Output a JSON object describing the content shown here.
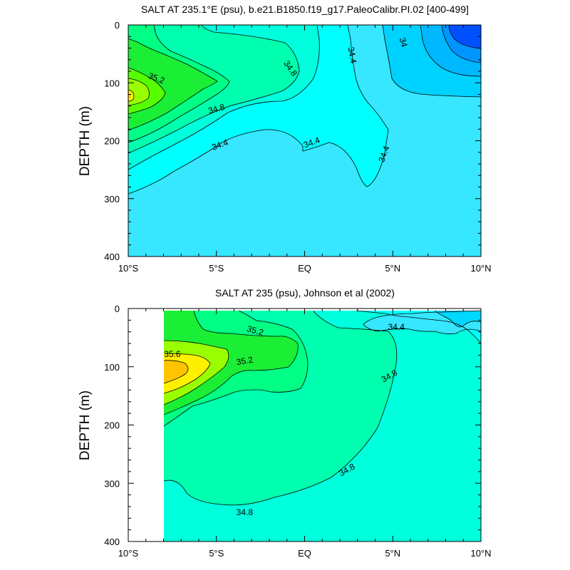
{
  "chart_data": [
    {
      "type": "contour",
      "title": "SALT AT 235.1°E (psu), b.e21.B1850.f19_g17.PaleoCalibr.PI.02 [400-499]",
      "ylabel": "DEPTH (m)",
      "xlim": [
        -10,
        10
      ],
      "ylim": [
        400,
        0
      ],
      "xticks": [
        {
          "value": -10,
          "label": "10°S"
        },
        {
          "value": -5,
          "label": "5°S"
        },
        {
          "value": 0,
          "label": "EQ"
        },
        {
          "value": 5,
          "label": "5°N"
        },
        {
          "value": 10,
          "label": "10°N"
        }
      ],
      "yticks": [
        {
          "value": 0,
          "label": "0"
        },
        {
          "value": 100,
          "label": "100"
        },
        {
          "value": 200,
          "label": "200"
        },
        {
          "value": 300,
          "label": "300"
        },
        {
          "value": 400,
          "label": "400"
        }
      ],
      "colors": {
        "c33_4": "#0050ff",
        "c33_6": "#0094ff",
        "c33_8": "#00b8ff",
        "c34_0": "#00d2ff",
        "c34_2": "#36e7ff",
        "c34_4": "#00ffff",
        "c34_6": "#00ffdd",
        "c34_8": "#00ffae",
        "c35_0": "#00ff84",
        "c35_2": "#1aef36",
        "c35_4": "#56ff00",
        "c35_6": "#99ff00",
        "c35_8": "#fff000",
        "c36_0": "#ffc400"
      },
      "contour_labels": [
        {
          "text": "35.2",
          "x": -8.4,
          "y": 92,
          "angle": 20
        },
        {
          "text": "34.8",
          "x": -5.0,
          "y": 145,
          "angle": -15
        },
        {
          "text": "34.4",
          "x": -4.8,
          "y": 207,
          "angle": -20
        },
        {
          "text": "34.8",
          "x": -0.8,
          "y": 75,
          "angle": 55
        },
        {
          "text": "34.4",
          "x": 2.7,
          "y": 52,
          "angle": 80
        },
        {
          "text": "34",
          "x": 5.6,
          "y": 30,
          "angle": 75
        },
        {
          "text": "34.4",
          "x": 0.4,
          "y": 203,
          "angle": -20
        },
        {
          "text": "34.4",
          "x": 4.5,
          "y": 223,
          "angle": -70
        }
      ]
    },
    {
      "type": "contour",
      "title": "SALT AT 235 (psu), Johnson et al (2002)",
      "ylabel": "DEPTH (m)",
      "xlim": [
        -10,
        10
      ],
      "ylim": [
        400,
        0
      ],
      "xticks": [
        {
          "value": -10,
          "label": "10°S"
        },
        {
          "value": -5,
          "label": "5°S"
        },
        {
          "value": 0,
          "label": "EQ"
        },
        {
          "value": 5,
          "label": "5°N"
        },
        {
          "value": 10,
          "label": "10°N"
        }
      ],
      "yticks": [
        {
          "value": 0,
          "label": "0"
        },
        {
          "value": 100,
          "label": "100"
        },
        {
          "value": 200,
          "label": "200"
        },
        {
          "value": 300,
          "label": "300"
        },
        {
          "value": 400,
          "label": "400"
        }
      ],
      "data_start_lon": -8,
      "colors": {
        "c34_2": "#00d8ff",
        "c34_4": "#36e7ff",
        "c34_6": "#00ffff",
        "c34_8": "#00ffdd",
        "c35_0": "#00ffae",
        "c35_2": "#00ff84",
        "c35_4": "#1aef36",
        "c35_6": "#99ff00",
        "c35_8": "#fff000",
        "c36_0": "#ffc400"
      },
      "contour_labels": [
        {
          "text": "35.2",
          "x": -2.8,
          "y": 38,
          "angle": 15
        },
        {
          "text": "34.4",
          "x": 5.2,
          "y": 32,
          "angle": 0
        },
        {
          "text": "35.6",
          "x": -7.5,
          "y": 78,
          "angle": 0
        },
        {
          "text": "35.2",
          "x": -3.4,
          "y": 90,
          "angle": -10
        },
        {
          "text": "34.8",
          "x": 4.8,
          "y": 116,
          "angle": -30
        },
        {
          "text": "34.8",
          "x": 2.4,
          "y": 277,
          "angle": -30
        },
        {
          "text": "34.8",
          "x": -3.4,
          "y": 350,
          "angle": 0
        }
      ]
    }
  ]
}
